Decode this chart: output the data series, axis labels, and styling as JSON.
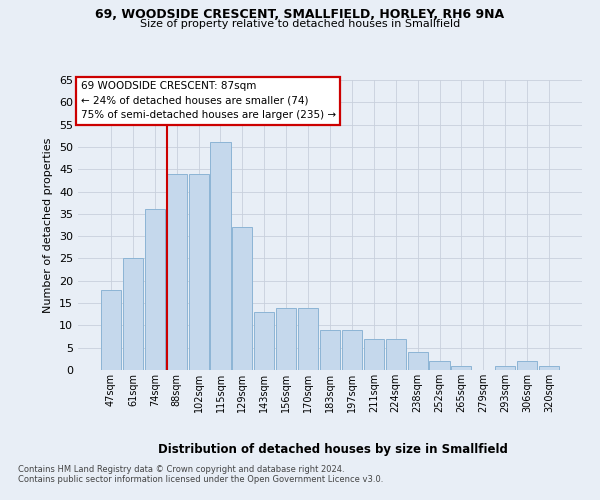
{
  "title1": "69, WOODSIDE CRESCENT, SMALLFIELD, HORLEY, RH6 9NA",
  "title2": "Size of property relative to detached houses in Smallfield",
  "xlabel": "Distribution of detached houses by size in Smallfield",
  "ylabel": "Number of detached properties",
  "footnote1": "Contains HM Land Registry data © Crown copyright and database right 2024.",
  "footnote2": "Contains public sector information licensed under the Open Government Licence v3.0.",
  "annotation_line1": "69 WOODSIDE CRESCENT: 87sqm",
  "annotation_line2": "← 24% of detached houses are smaller (74)",
  "annotation_line3": "75% of semi-detached houses are larger (235) →",
  "bar_labels": [
    "47sqm",
    "61sqm",
    "74sqm",
    "88sqm",
    "102sqm",
    "115sqm",
    "129sqm",
    "143sqm",
    "156sqm",
    "170sqm",
    "183sqm",
    "197sqm",
    "211sqm",
    "224sqm",
    "238sqm",
    "252sqm",
    "265sqm",
    "279sqm",
    "293sqm",
    "306sqm",
    "320sqm"
  ],
  "bar_values": [
    18,
    25,
    36,
    44,
    44,
    51,
    32,
    13,
    14,
    14,
    9,
    9,
    7,
    7,
    4,
    2,
    1,
    0,
    1,
    2,
    1
  ],
  "bar_color": "#c5d8ec",
  "bar_edge_color": "#8cb4d5",
  "vline_color": "#cc0000",
  "annotation_box_edge": "#cc0000",
  "annotation_box_fill": "#ffffff",
  "bg_color": "#e8eef6",
  "grid_color": "#c8d0dc",
  "ylim_max": 65,
  "yticks": [
    0,
    5,
    10,
    15,
    20,
    25,
    30,
    35,
    40,
    45,
    50,
    55,
    60,
    65
  ]
}
